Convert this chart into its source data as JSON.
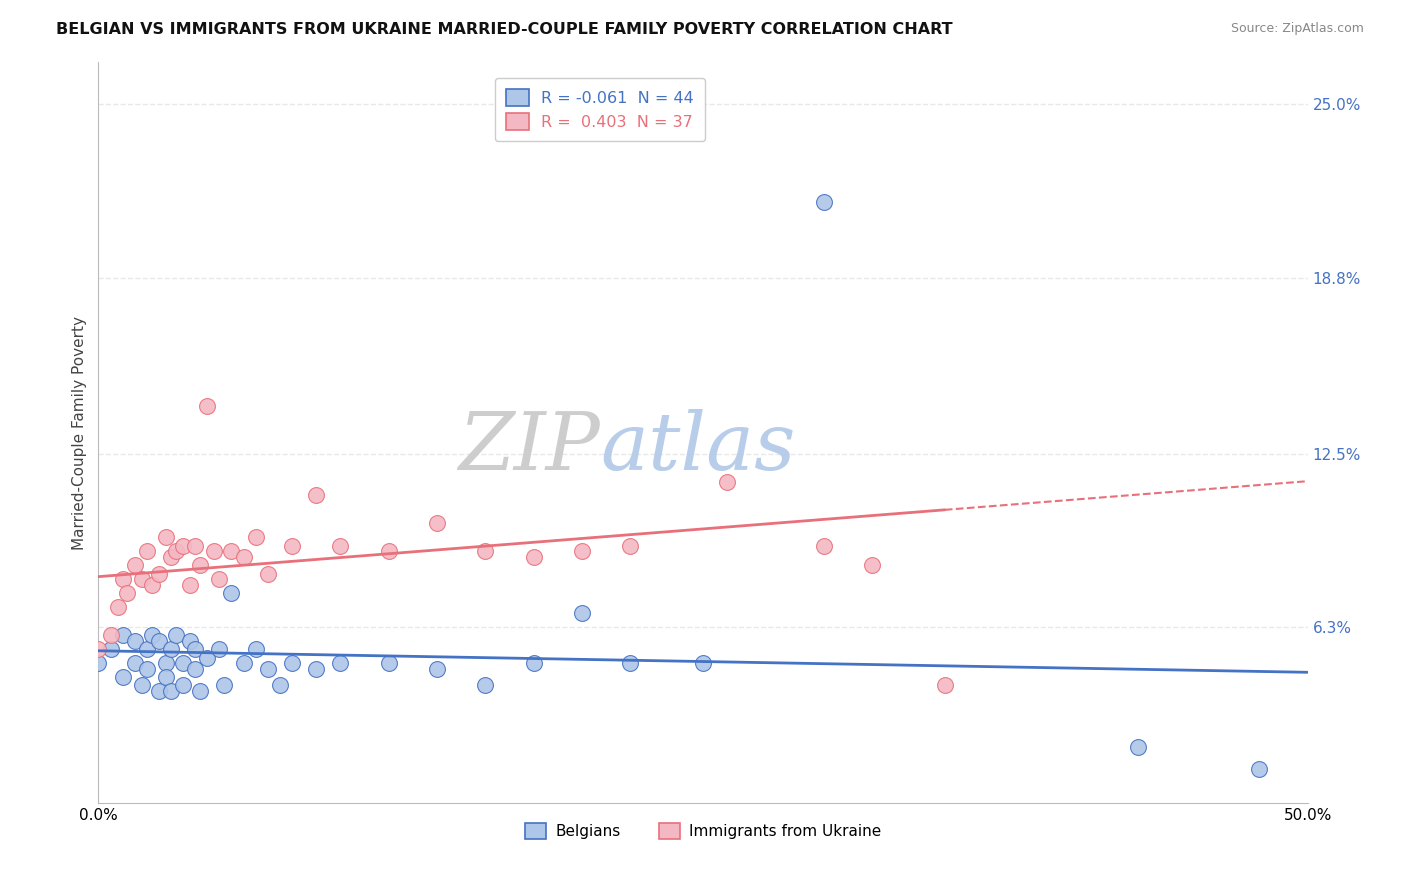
{
  "title": "BELGIAN VS IMMIGRANTS FROM UKRAINE MARRIED-COUPLE FAMILY POVERTY CORRELATION CHART",
  "source": "Source: ZipAtlas.com",
  "ylabel": "Married-Couple Family Poverty",
  "xlim": [
    0.0,
    0.5
  ],
  "ylim": [
    0.0,
    0.265
  ],
  "xtick_positions": [
    0.0,
    0.5
  ],
  "xtick_labels": [
    "0.0%",
    "50.0%"
  ],
  "ytick_vals_right": [
    0.063,
    0.125,
    0.188,
    0.25
  ],
  "ytick_labels_right": [
    "6.3%",
    "12.5%",
    "18.8%",
    "25.0%"
  ],
  "legend_r_label_belgian": "R = -0.061  N = 44",
  "legend_r_label_ukraine": "R =  0.403  N = 37",
  "belgians_x": [
    0.0,
    0.005,
    0.01,
    0.01,
    0.015,
    0.015,
    0.018,
    0.02,
    0.02,
    0.022,
    0.025,
    0.025,
    0.028,
    0.028,
    0.03,
    0.03,
    0.032,
    0.035,
    0.035,
    0.038,
    0.04,
    0.04,
    0.042,
    0.045,
    0.05,
    0.052,
    0.055,
    0.06,
    0.065,
    0.07,
    0.075,
    0.08,
    0.09,
    0.1,
    0.12,
    0.14,
    0.16,
    0.18,
    0.2,
    0.22,
    0.25,
    0.3,
    0.43,
    0.48
  ],
  "belgians_y": [
    0.05,
    0.055,
    0.045,
    0.06,
    0.05,
    0.058,
    0.042,
    0.055,
    0.048,
    0.06,
    0.04,
    0.058,
    0.05,
    0.045,
    0.055,
    0.04,
    0.06,
    0.05,
    0.042,
    0.058,
    0.048,
    0.055,
    0.04,
    0.052,
    0.055,
    0.042,
    0.075,
    0.05,
    0.055,
    0.048,
    0.042,
    0.05,
    0.048,
    0.05,
    0.05,
    0.048,
    0.042,
    0.05,
    0.068,
    0.05,
    0.05,
    0.215,
    0.02,
    0.012
  ],
  "ukraine_x": [
    0.0,
    0.005,
    0.008,
    0.01,
    0.012,
    0.015,
    0.018,
    0.02,
    0.022,
    0.025,
    0.028,
    0.03,
    0.032,
    0.035,
    0.038,
    0.04,
    0.042,
    0.045,
    0.048,
    0.05,
    0.055,
    0.06,
    0.065,
    0.07,
    0.08,
    0.09,
    0.1,
    0.12,
    0.14,
    0.16,
    0.18,
    0.2,
    0.22,
    0.26,
    0.3,
    0.32,
    0.35
  ],
  "ukraine_y": [
    0.055,
    0.06,
    0.07,
    0.08,
    0.075,
    0.085,
    0.08,
    0.09,
    0.078,
    0.082,
    0.095,
    0.088,
    0.09,
    0.092,
    0.078,
    0.092,
    0.085,
    0.142,
    0.09,
    0.08,
    0.09,
    0.088,
    0.095,
    0.082,
    0.092,
    0.11,
    0.092,
    0.09,
    0.1,
    0.09,
    0.088,
    0.09,
    0.092,
    0.115,
    0.092,
    0.085,
    0.042
  ],
  "belgian_line_color": "#4472c4",
  "ukraine_line_color": "#e8707a",
  "belgian_scatter_face": "#aec6e8",
  "ukraine_scatter_face": "#f4b8c4",
  "belgian_R": -0.061,
  "ukraine_R": 0.403,
  "grid_color": "#e8e8e8",
  "background_color": "#ffffff",
  "watermark_zip_color": "#c8c8c8",
  "watermark_atlas_color": "#b0c8e8"
}
